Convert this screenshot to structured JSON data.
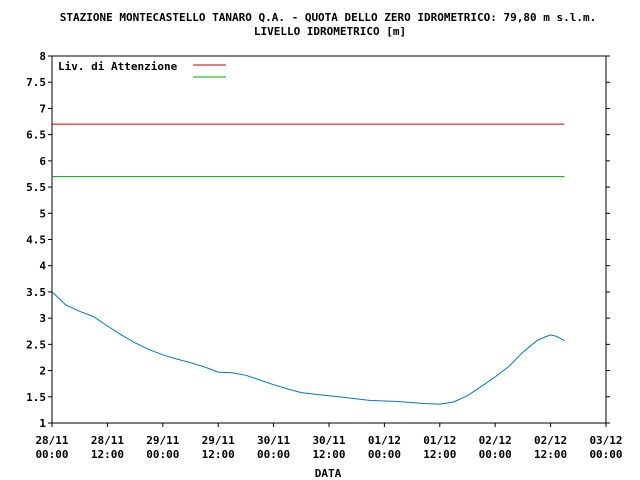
{
  "chart_data": {
    "type": "line",
    "title": "STAZIONE MONTECASTELLO TANARO Q.A. - QUOTA DELLO ZERO IDROMETRICO: 79,80 m s.l.m.",
    "subtitle": "LIVELLO IDROMETRICO [m]",
    "xlabel": "DATA",
    "ylabel": "",
    "ylim": [
      1,
      8
    ],
    "yticks": [
      "1",
      "1.5",
      "2",
      "2.5",
      "3",
      "3.5",
      "4",
      "4.5",
      "5",
      "5.5",
      "6",
      "6.5",
      "7",
      "7.5",
      "8"
    ],
    "xticks": [
      {
        "date": "28/11",
        "time": "00:00"
      },
      {
        "date": "28/11",
        "time": "12:00"
      },
      {
        "date": "29/11",
        "time": "00:00"
      },
      {
        "date": "29/11",
        "time": "12:00"
      },
      {
        "date": "30/11",
        "time": "00:00"
      },
      {
        "date": "30/11",
        "time": "12:00"
      },
      {
        "date": "01/12",
        "time": "00:00"
      },
      {
        "date": "01/12",
        "time": "12:00"
      },
      {
        "date": "02/12",
        "time": "00:00"
      },
      {
        "date": "02/12",
        "time": "12:00"
      },
      {
        "date": "03/12",
        "time": "00:00"
      }
    ],
    "grid": false,
    "legend_placement": "top-left",
    "legend": [
      {
        "label": "Liv. di Attenzione",
        "color": "#cc0000"
      },
      {
        "label": "",
        "color": "#00aa00"
      }
    ],
    "thresholds": [
      {
        "label": "Liv. di Attenzione",
        "value": 6.7,
        "color": "#cc0000"
      },
      {
        "label": "",
        "value": 5.7,
        "color": "#00aa00"
      }
    ],
    "series": [
      {
        "color": "#0077cc",
        "x": [
          "28/11 00:00",
          "28/11 01:00",
          "28/11 03:00",
          "28/11 06:00",
          "28/11 09:00",
          "28/11 12:00",
          "28/11 15:00",
          "28/11 18:00",
          "28/11 21:00",
          "29/11 00:00",
          "29/11 03:00",
          "29/11 06:00",
          "29/11 09:00",
          "29/11 12:00",
          "29/11 15:00",
          "29/11 18:00",
          "29/11 21:00",
          "30/11 00:00",
          "30/11 03:00",
          "30/11 06:00",
          "30/11 09:00",
          "30/11 12:00",
          "30/11 15:00",
          "30/11 18:00",
          "30/11 21:00",
          "01/12 00:00",
          "01/12 03:00",
          "01/12 06:00",
          "01/12 09:00",
          "01/12 12:00",
          "01/12 15:00",
          "01/12 18:00",
          "01/12 21:00",
          "02/12 00:00",
          "02/12 03:00",
          "02/12 06:00",
          "02/12 09:00",
          "02/12 11:00",
          "02/12 12:00",
          "02/12 13:00",
          "02/12 14:00",
          "02/12 15:00"
        ],
        "values": [
          3.5,
          3.42,
          3.25,
          3.13,
          3.03,
          2.85,
          2.68,
          2.53,
          2.4,
          2.3,
          2.22,
          2.15,
          2.07,
          1.97,
          1.96,
          1.91,
          1.82,
          1.73,
          1.65,
          1.58,
          1.55,
          1.52,
          1.49,
          1.46,
          1.43,
          1.42,
          1.41,
          1.39,
          1.37,
          1.36,
          1.4,
          1.52,
          1.7,
          1.88,
          2.08,
          2.35,
          2.57,
          2.65,
          2.68,
          2.66,
          2.62,
          2.57
        ]
      }
    ]
  }
}
